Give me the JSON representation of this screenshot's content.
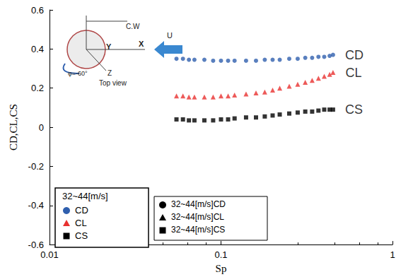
{
  "chart_data": {
    "type": "scatter",
    "x_label": "Sp",
    "y_label": "CD,CL,CS",
    "log": "x",
    "grid": false,
    "xlim": [
      0.01,
      1
    ],
    "xticks": [
      0.01,
      0.1,
      1
    ],
    "ylim": [
      -0.6,
      0.6
    ],
    "yticks": [
      -0.6,
      -0.4,
      -0.2,
      0,
      0.2,
      0.4,
      0.6
    ],
    "x": [
      0.055,
      0.06,
      0.065,
      0.07,
      0.08,
      0.09,
      0.1,
      0.11,
      0.12,
      0.14,
      0.16,
      0.18,
      0.2,
      0.22,
      0.25,
      0.28,
      0.31,
      0.34,
      0.37,
      0.4,
      0.43,
      0.45
    ],
    "series": [
      {
        "name": "CD",
        "color": "#2f5fae",
        "marker": "circle",
        "values": [
          0.35,
          0.35,
          0.345,
          0.345,
          0.345,
          0.34,
          0.34,
          0.34,
          0.34,
          0.34,
          0.34,
          0.345,
          0.345,
          0.345,
          0.35,
          0.35,
          0.355,
          0.355,
          0.36,
          0.36,
          0.365,
          0.37
        ]
      },
      {
        "name": "CL",
        "color": "#e8312f",
        "marker": "triangle",
        "values": [
          0.16,
          0.16,
          0.155,
          0.155,
          0.155,
          0.155,
          0.16,
          0.16,
          0.165,
          0.17,
          0.175,
          0.18,
          0.19,
          0.2,
          0.21,
          0.22,
          0.23,
          0.24,
          0.25,
          0.26,
          0.27,
          0.28
        ]
      },
      {
        "name": "CS",
        "color": "#000000",
        "marker": "square",
        "values": [
          0.04,
          0.04,
          0.035,
          0.035,
          0.035,
          0.035,
          0.04,
          0.04,
          0.045,
          0.05,
          0.05,
          0.055,
          0.06,
          0.065,
          0.07,
          0.075,
          0.08,
          0.08,
          0.085,
          0.09,
          0.09,
          0.09
        ]
      }
    ],
    "legend": "lower left",
    "legend_title": "32~44[m/s]",
    "legend2": {
      "color": "#000000",
      "labels": [
        "32~44[m/s]CD",
        "32~44[m/s]CL",
        "32~44[m/s]CS"
      ]
    },
    "inset": {
      "cw": "C.W",
      "y": "Y",
      "x": "X",
      "z": "Z",
      "u": "U",
      "phi": "φ=-60°",
      "view": "Top view"
    }
  }
}
